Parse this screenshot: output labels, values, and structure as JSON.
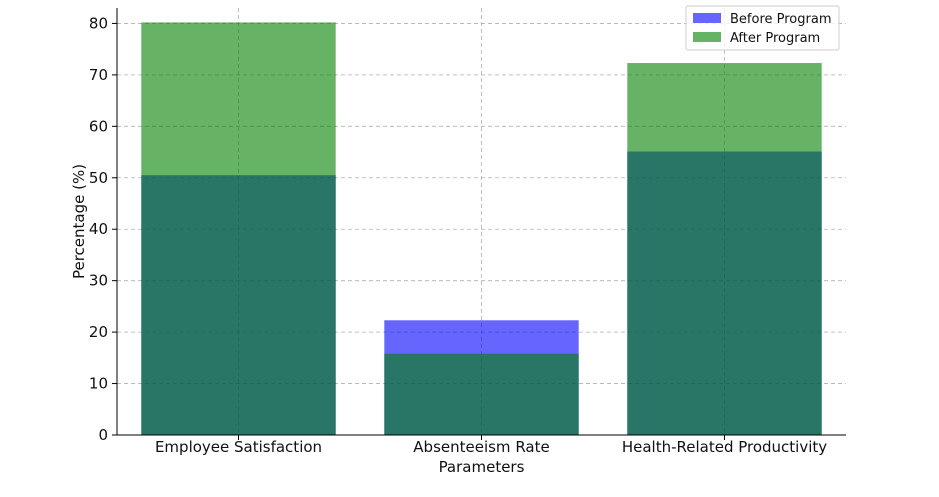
{
  "chart_data": {
    "type": "bar",
    "title": "",
    "xlabel": "Parameters",
    "ylabel": "Percentage (%)",
    "categories": [
      "Employee Satisfaction",
      "Absenteeism Rate",
      "Health-Related Productivity"
    ],
    "series": [
      {
        "name": "Before Program",
        "color": "#0000ff",
        "opacity": 0.6,
        "values": [
          50.5,
          22.3,
          55.1
        ]
      },
      {
        "name": "After Program",
        "color": "#008000",
        "opacity": 0.6,
        "values": [
          80.2,
          15.8,
          72.3
        ]
      }
    ],
    "ylim": [
      0,
      83
    ],
    "yticks": [
      0,
      10,
      20,
      30,
      40,
      50,
      60,
      70,
      80
    ],
    "grid": true,
    "legend_position": "top-right"
  }
}
